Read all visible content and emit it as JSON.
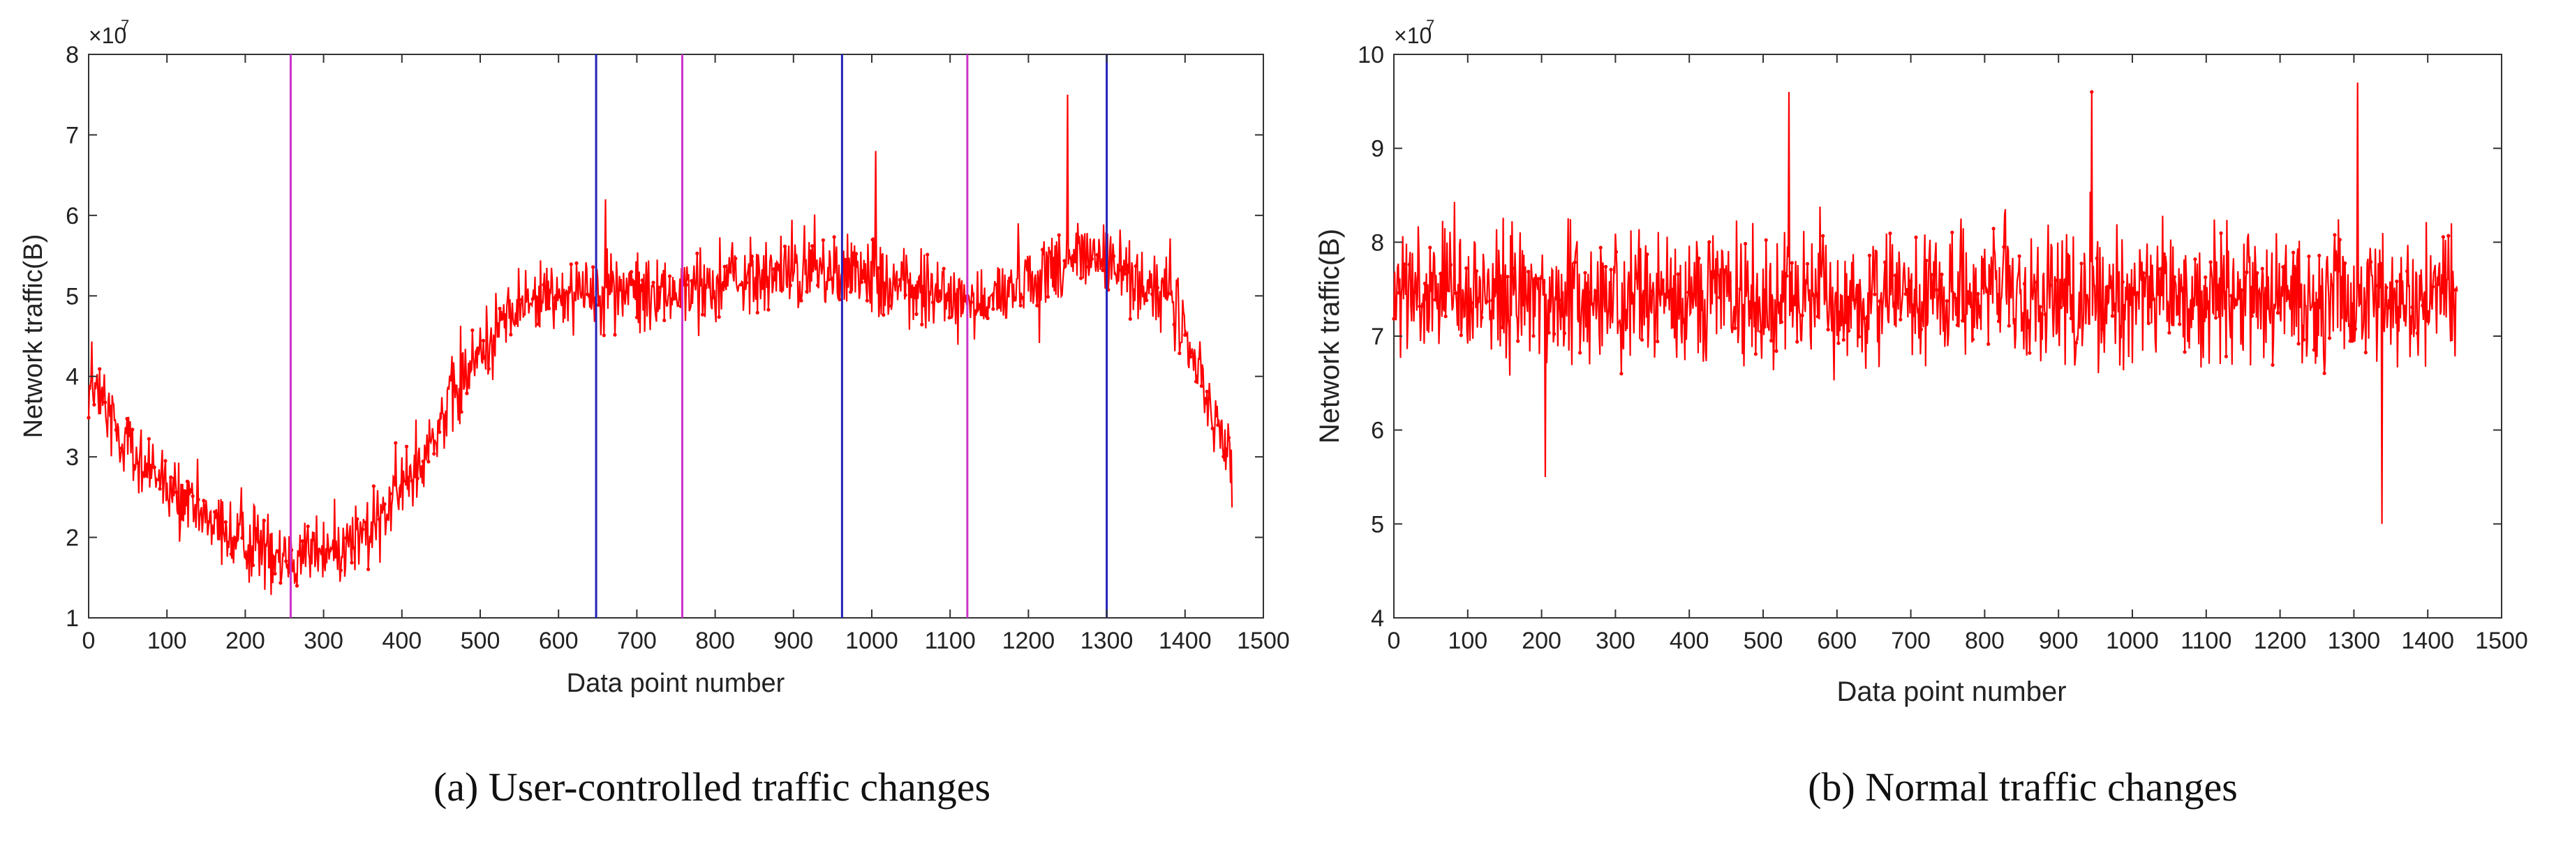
{
  "figure": {
    "colors": {
      "series": "#ff0000",
      "axis": "#333333",
      "magenta_marker": "#cc33cc",
      "blue_marker": "#2222bb"
    }
  },
  "chart_data": [
    {
      "type": "line",
      "panel": "a",
      "title": "",
      "caption": "(a) User-controlled traffic changes",
      "xlabel": "Data point number",
      "ylabel": "Network traffic(B)",
      "y_exponent_label": "×10",
      "y_exponent": "7",
      "xlim": [
        0,
        1500
      ],
      "ylim": [
        1,
        8
      ],
      "x_ticks": [
        0,
        100,
        200,
        300,
        400,
        500,
        600,
        700,
        800,
        900,
        1000,
        1100,
        1200,
        1300,
        1400,
        1500
      ],
      "y_ticks": [
        1,
        2,
        3,
        4,
        5,
        6,
        7,
        8
      ],
      "grid": false,
      "x_range_of_data": [
        0,
        1460
      ],
      "trend_knots_x": [
        0,
        60,
        120,
        180,
        240,
        300,
        360,
        420,
        480,
        540,
        600,
        660,
        720,
        780,
        840,
        900,
        960,
        1020,
        1080,
        1140,
        1200,
        1260,
        1300,
        1340,
        1380,
        1410,
        1440,
        1460
      ],
      "trend_knots_y": [
        3.9,
        3.0,
        2.4,
        2.0,
        1.85,
        1.8,
        2.05,
        2.9,
        4.0,
        4.8,
        5.05,
        5.1,
        5.0,
        5.1,
        5.2,
        5.3,
        5.3,
        5.2,
        5.0,
        4.9,
        5.2,
        5.5,
        5.4,
        5.2,
        5.0,
        4.3,
        3.4,
        2.9
      ],
      "noise_amplitude": 0.5,
      "spikes": [
        {
          "x": 1250,
          "y": 7.5
        },
        {
          "x": 1005,
          "y": 6.8
        },
        {
          "x": 660,
          "y": 6.2
        }
      ],
      "magenta_markers_x": [
        258,
        758,
        1122
      ],
      "blue_markers_x": [
        648,
        962,
        1300
      ]
    },
    {
      "type": "line",
      "panel": "b",
      "title": "",
      "caption": "(b) Normal traffic changes",
      "xlabel": "Data point number",
      "ylabel": "Network traffic(B)",
      "y_exponent_label": "×10",
      "y_exponent": "7",
      "xlim": [
        0,
        1500
      ],
      "ylim": [
        4,
        10
      ],
      "x_ticks": [
        0,
        100,
        200,
        300,
        400,
        500,
        600,
        700,
        800,
        900,
        1000,
        1100,
        1200,
        1300,
        1400,
        1500
      ],
      "y_ticks": [
        4,
        5,
        6,
        7,
        8,
        9,
        10
      ],
      "grid": false,
      "x_range_of_data": [
        0,
        1440
      ],
      "trend_knots_x": [
        0,
        1440
      ],
      "trend_knots_y": [
        7.4,
        7.4
      ],
      "noise_amplitude": 0.75,
      "spikes": [
        {
          "x": 1305,
          "y": 9.7
        },
        {
          "x": 535,
          "y": 9.6
        },
        {
          "x": 945,
          "y": 9.6
        },
        {
          "x": 1338,
          "y": 5.0
        },
        {
          "x": 205,
          "y": 5.5
        }
      ],
      "magenta_markers_x": [],
      "blue_markers_x": []
    }
  ]
}
